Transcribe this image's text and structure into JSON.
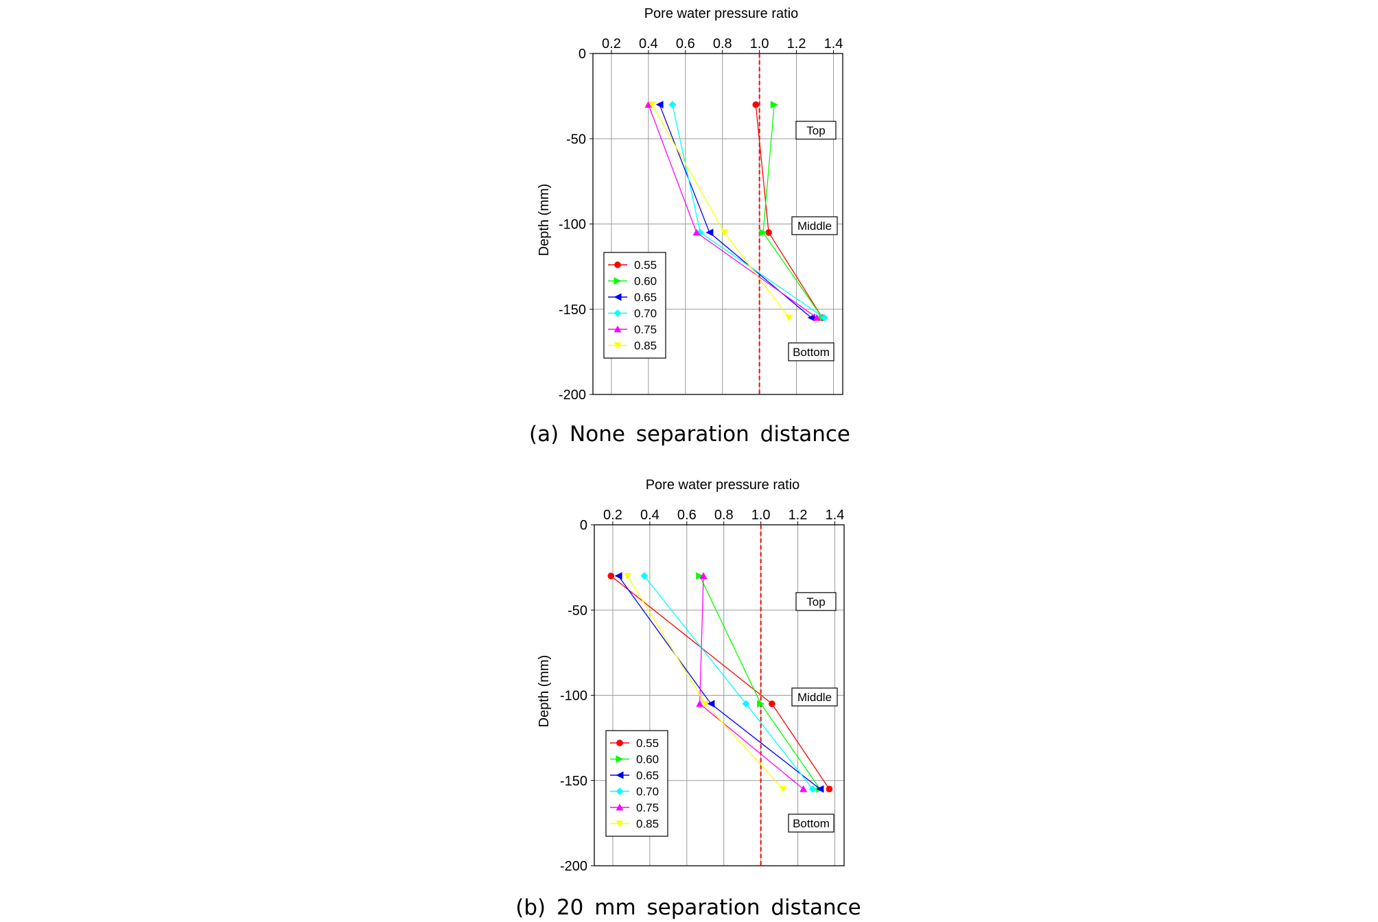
{
  "figure": {
    "panels": [
      {
        "caption": "(a) None separation distance",
        "chart_data": {
          "type": "line",
          "title": "",
          "xlabel": "Pore water pressure ratio",
          "ylabel": "Depth (mm)",
          "xlim": [
            0.1,
            1.45
          ],
          "ylim": [
            -200,
            0
          ],
          "x_ticks": [
            "0.2",
            "0.4",
            "0.6",
            "0.8",
            "1.0",
            "1.2",
            "1.4"
          ],
          "y_ticks": [
            "0",
            "-50",
            "-100",
            "-150",
            "-200"
          ],
          "grid": true,
          "reference_line": {
            "x": 1.0,
            "color": "#ff0000",
            "style": "dashed"
          },
          "annotations": [
            {
              "text": "Top",
              "depth": -45
            },
            {
              "text": "Middle",
              "depth": -101
            },
            {
              "text": "Bottom",
              "depth": -175
            }
          ],
          "legend_position": "bottom-left",
          "series": [
            {
              "name": "0.55",
              "color": "#ff0000",
              "marker": "circle",
              "x": [
                0.98,
                1.05,
                1.34
              ],
              "y": [
                -30,
                -105,
                -155
              ]
            },
            {
              "name": "0.60",
              "color": "#00ff00",
              "marker": "triangle-right",
              "x": [
                1.08,
                1.02,
                1.34
              ],
              "y": [
                -30,
                -105,
                -155
              ]
            },
            {
              "name": "0.65",
              "color": "#0000ff",
              "marker": "triangle-left",
              "x": [
                0.46,
                0.73,
                1.28
              ],
              "y": [
                -30,
                -105,
                -155
              ]
            },
            {
              "name": "0.70",
              "color": "#00ffff",
              "marker": "diamond",
              "x": [
                0.53,
                0.68,
                1.35
              ],
              "y": [
                -30,
                -105,
                -155
              ]
            },
            {
              "name": "0.75",
              "color": "#ff00ff",
              "marker": "triangle-up",
              "x": [
                0.4,
                0.66,
                1.31
              ],
              "y": [
                -30,
                -105,
                -155
              ]
            },
            {
              "name": "0.85",
              "color": "#ffff00",
              "marker": "triangle-down",
              "x": [
                0.42,
                0.81,
                1.16
              ],
              "y": [
                -30,
                -105,
                -155
              ]
            }
          ]
        }
      },
      {
        "caption": "(b) 20 mm separation distance",
        "chart_data": {
          "type": "line",
          "title": "",
          "xlabel": "Pore water pressure ratio",
          "ylabel": "Depth (mm)",
          "xlim": [
            0.1,
            1.45
          ],
          "ylim": [
            -200,
            0
          ],
          "x_ticks": [
            "0.2",
            "0.4",
            "0.6",
            "0.8",
            "1.0",
            "1.2",
            "1.4"
          ],
          "y_ticks": [
            "0",
            "-50",
            "-100",
            "-150",
            "-200"
          ],
          "grid": true,
          "reference_line": {
            "x": 1.0,
            "color": "#ff0000",
            "style": "dashed"
          },
          "annotations": [
            {
              "text": "Top",
              "depth": -45
            },
            {
              "text": "Middle",
              "depth": -101
            },
            {
              "text": "Bottom",
              "depth": -175
            }
          ],
          "legend_position": "bottom-left",
          "series": [
            {
              "name": "0.55",
              "color": "#ff0000",
              "marker": "circle",
              "x": [
                0.19,
                1.06,
                1.37
              ],
              "y": [
                -30,
                -105,
                -155
              ]
            },
            {
              "name": "0.60",
              "color": "#00ff00",
              "marker": "triangle-right",
              "x": [
                0.67,
                1.0,
                1.32
              ],
              "y": [
                -30,
                -105,
                -155
              ]
            },
            {
              "name": "0.65",
              "color": "#0000ff",
              "marker": "triangle-left",
              "x": [
                0.23,
                0.73,
                1.32
              ],
              "y": [
                -30,
                -105,
                -155
              ]
            },
            {
              "name": "0.70",
              "color": "#00ffff",
              "marker": "diamond",
              "x": [
                0.37,
                0.92,
                1.28
              ],
              "y": [
                -30,
                -105,
                -155
              ]
            },
            {
              "name": "0.75",
              "color": "#ff00ff",
              "marker": "triangle-up",
              "x": [
                0.69,
                0.67,
                1.23
              ],
              "y": [
                -30,
                -105,
                -155
              ]
            },
            {
              "name": "0.85",
              "color": "#ffff00",
              "marker": "triangle-down",
              "x": [
                0.28,
                0.7,
                1.12
              ],
              "y": [
                -30,
                -105,
                -155
              ]
            }
          ]
        }
      }
    ]
  }
}
